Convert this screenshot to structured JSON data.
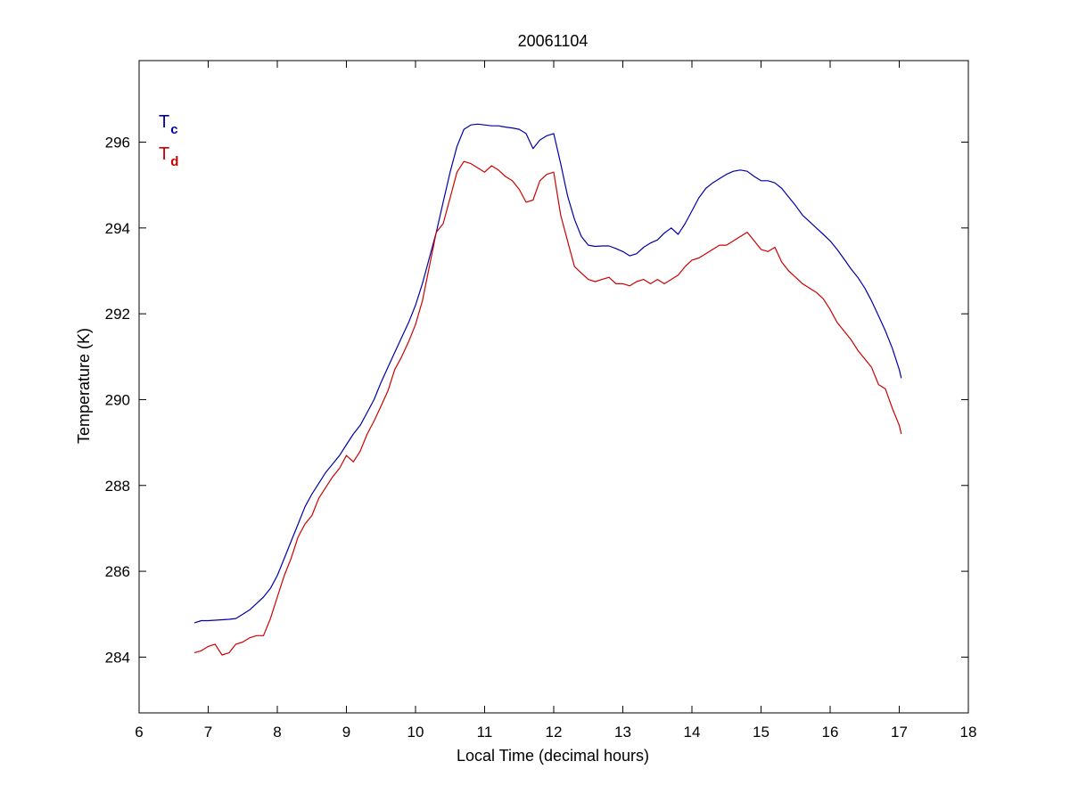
{
  "chart_data": {
    "type": "line",
    "title": "20061104",
    "xlabel": "Local Time (decimal hours)",
    "ylabel": "Temperature (K)",
    "xlim": [
      6,
      18
    ],
    "ylim": [
      282.7,
      297.9
    ],
    "xticks": [
      6,
      7,
      8,
      9,
      10,
      11,
      12,
      13,
      14,
      15,
      16,
      17,
      18
    ],
    "yticks": [
      284,
      286,
      288,
      290,
      292,
      294,
      296
    ],
    "grid": false,
    "legend_position": "top-left",
    "series": [
      {
        "name": "Tc",
        "legend_main": "T",
        "legend_sub": "c",
        "color": "#0000aa",
        "x": [
          6.8,
          6.9,
          7.0,
          7.1,
          7.2,
          7.3,
          7.4,
          7.5,
          7.6,
          7.7,
          7.8,
          7.9,
          8.0,
          8.1,
          8.2,
          8.3,
          8.4,
          8.5,
          8.6,
          8.7,
          8.8,
          8.9,
          9.0,
          9.1,
          9.2,
          9.3,
          9.4,
          9.5,
          9.6,
          9.7,
          9.8,
          9.9,
          10.0,
          10.1,
          10.2,
          10.3,
          10.4,
          10.5,
          10.6,
          10.7,
          10.8,
          10.9,
          11.0,
          11.1,
          11.2,
          11.3,
          11.4,
          11.5,
          11.6,
          11.7,
          11.8,
          11.9,
          12.0,
          12.1,
          12.2,
          12.3,
          12.4,
          12.5,
          12.6,
          12.7,
          12.8,
          12.9,
          13.0,
          13.1,
          13.2,
          13.3,
          13.4,
          13.5,
          13.6,
          13.7,
          13.8,
          13.9,
          14.0,
          14.1,
          14.2,
          14.3,
          14.4,
          14.5,
          14.6,
          14.7,
          14.8,
          14.9,
          15.0,
          15.1,
          15.2,
          15.3,
          15.4,
          15.5,
          15.6,
          15.7,
          15.8,
          15.9,
          16.0,
          16.1,
          16.2,
          16.3,
          16.4,
          16.5,
          16.6,
          16.7,
          16.8,
          16.9,
          17.0,
          17.03
        ],
        "y": [
          284.8,
          284.85,
          284.85,
          284.86,
          284.87,
          284.88,
          284.9,
          285.0,
          285.1,
          285.25,
          285.4,
          285.6,
          285.9,
          286.3,
          286.7,
          287.1,
          287.5,
          287.8,
          288.05,
          288.3,
          288.5,
          288.7,
          288.95,
          289.2,
          289.4,
          289.7,
          290.0,
          290.4,
          290.75,
          291.1,
          291.45,
          291.8,
          292.2,
          292.7,
          293.3,
          293.9,
          294.6,
          295.3,
          295.9,
          296.3,
          296.4,
          296.42,
          296.4,
          296.38,
          296.38,
          296.35,
          296.33,
          296.3,
          296.2,
          295.85,
          296.05,
          296.15,
          296.2,
          295.5,
          294.75,
          294.2,
          293.8,
          293.6,
          293.57,
          293.58,
          293.58,
          293.52,
          293.45,
          293.35,
          293.4,
          293.55,
          293.65,
          293.72,
          293.88,
          294.0,
          293.85,
          294.1,
          294.4,
          294.7,
          294.92,
          295.05,
          295.15,
          295.25,
          295.32,
          295.35,
          295.32,
          295.2,
          295.1,
          295.1,
          295.05,
          294.92,
          294.72,
          294.52,
          294.3,
          294.15,
          294.0,
          293.85,
          293.7,
          293.5,
          293.28,
          293.05,
          292.85,
          292.6,
          292.3,
          291.95,
          291.6,
          291.2,
          290.7,
          290.5
        ]
      },
      {
        "name": "Td",
        "legend_main": "T",
        "legend_sub": "d",
        "color": "#cc0000",
        "x": [
          6.8,
          6.9,
          7.0,
          7.1,
          7.2,
          7.3,
          7.4,
          7.5,
          7.6,
          7.7,
          7.8,
          7.9,
          8.0,
          8.1,
          8.2,
          8.3,
          8.4,
          8.5,
          8.6,
          8.7,
          8.8,
          8.9,
          9.0,
          9.1,
          9.2,
          9.3,
          9.4,
          9.5,
          9.6,
          9.7,
          9.8,
          9.9,
          10.0,
          10.1,
          10.2,
          10.3,
          10.4,
          10.5,
          10.6,
          10.7,
          10.8,
          10.9,
          11.0,
          11.1,
          11.2,
          11.3,
          11.4,
          11.5,
          11.6,
          11.7,
          11.8,
          11.9,
          12.0,
          12.1,
          12.2,
          12.3,
          12.4,
          12.5,
          12.6,
          12.7,
          12.8,
          12.9,
          13.0,
          13.1,
          13.2,
          13.3,
          13.4,
          13.5,
          13.6,
          13.7,
          13.8,
          13.9,
          14.0,
          14.1,
          14.2,
          14.3,
          14.4,
          14.5,
          14.6,
          14.7,
          14.8,
          14.9,
          15.0,
          15.1,
          15.2,
          15.3,
          15.4,
          15.5,
          15.6,
          15.7,
          15.8,
          15.9,
          16.0,
          16.1,
          16.2,
          16.3,
          16.4,
          16.5,
          16.6,
          16.7,
          16.8,
          16.9,
          17.0,
          17.03
        ],
        "y": [
          284.1,
          284.15,
          284.25,
          284.3,
          284.05,
          284.1,
          284.3,
          284.35,
          284.45,
          284.5,
          284.5,
          284.9,
          285.4,
          285.9,
          286.3,
          286.8,
          287.1,
          287.3,
          287.7,
          287.95,
          288.2,
          288.4,
          288.7,
          288.55,
          288.8,
          289.2,
          289.5,
          289.85,
          290.2,
          290.7,
          291.0,
          291.35,
          291.75,
          292.3,
          293.1,
          293.9,
          294.1,
          294.7,
          295.3,
          295.55,
          295.5,
          295.4,
          295.3,
          295.45,
          295.35,
          295.2,
          295.1,
          294.9,
          294.6,
          294.65,
          295.1,
          295.25,
          295.3,
          294.3,
          293.7,
          293.1,
          292.95,
          292.8,
          292.75,
          292.8,
          292.85,
          292.7,
          292.7,
          292.65,
          292.75,
          292.8,
          292.7,
          292.8,
          292.7,
          292.8,
          292.9,
          293.1,
          293.25,
          293.3,
          293.4,
          293.5,
          293.6,
          293.6,
          293.7,
          293.8,
          293.9,
          293.7,
          293.5,
          293.45,
          293.55,
          293.2,
          293.0,
          292.85,
          292.7,
          292.6,
          292.5,
          292.35,
          292.1,
          291.8,
          291.6,
          291.4,
          291.15,
          290.95,
          290.75,
          290.35,
          290.25,
          289.8,
          289.4,
          289.2
        ]
      }
    ]
  }
}
